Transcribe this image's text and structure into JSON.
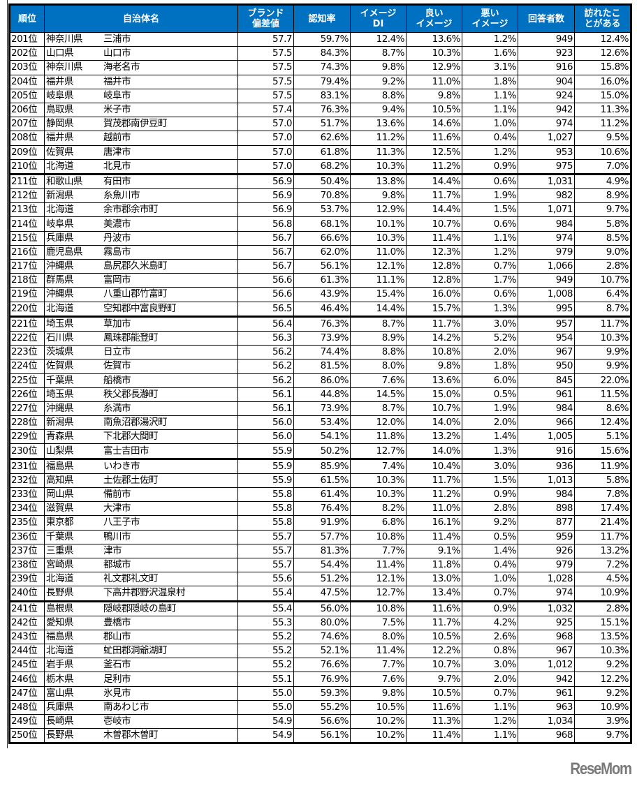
{
  "headers": {
    "rank": "順位",
    "name": "自治体名",
    "brand": [
      "ブランド",
      "偏差値"
    ],
    "awareness": "認知率",
    "image_di": [
      "イメージ",
      "DI"
    ],
    "good": [
      "良い",
      "イメージ"
    ],
    "bad": [
      "悪い",
      "イメージ"
    ],
    "respondents": "回答者数",
    "visited": [
      "訪れたこ",
      "とがある"
    ]
  },
  "rows": [
    [
      "201位",
      "神奈川県",
      "三浦市",
      "57.7",
      "59.7%",
      "12.4%",
      "13.6%",
      "1.2%",
      "949",
      "12.4%"
    ],
    [
      "202位",
      "山口県",
      "山口市",
      "57.5",
      "84.3%",
      "8.7%",
      "10.3%",
      "1.6%",
      "923",
      "12.6%"
    ],
    [
      "203位",
      "神奈川県",
      "海老名市",
      "57.5",
      "74.3%",
      "9.8%",
      "12.9%",
      "3.1%",
      "916",
      "15.8%"
    ],
    [
      "204位",
      "福井県",
      "福井市",
      "57.5",
      "79.4%",
      "9.2%",
      "11.0%",
      "1.8%",
      "904",
      "16.0%"
    ],
    [
      "205位",
      "岐阜県",
      "岐阜市",
      "57.5",
      "83.1%",
      "8.8%",
      "9.8%",
      "1.1%",
      "924",
      "15.0%"
    ],
    [
      "206位",
      "鳥取県",
      "米子市",
      "57.4",
      "76.3%",
      "9.4%",
      "10.5%",
      "1.1%",
      "942",
      "11.3%"
    ],
    [
      "207位",
      "静岡県",
      "賀茂郡南伊豆町",
      "57.0",
      "51.7%",
      "13.6%",
      "14.6%",
      "1.0%",
      "974",
      "11.2%"
    ],
    [
      "208位",
      "福井県",
      "越前市",
      "57.0",
      "62.6%",
      "11.2%",
      "11.6%",
      "0.4%",
      "1,027",
      "9.5%"
    ],
    [
      "209位",
      "佐賀県",
      "唐津市",
      "57.0",
      "61.8%",
      "11.3%",
      "12.5%",
      "1.2%",
      "953",
      "10.6%"
    ],
    [
      "210位",
      "北海道",
      "北見市",
      "57.0",
      "68.2%",
      "10.3%",
      "11.2%",
      "0.9%",
      "975",
      "7.0%"
    ],
    [
      "211位",
      "和歌山県",
      "有田市",
      "56.9",
      "50.4%",
      "13.8%",
      "14.4%",
      "0.6%",
      "1,031",
      "4.9%"
    ],
    [
      "212位",
      "新潟県",
      "糸魚川市",
      "56.9",
      "70.8%",
      "9.8%",
      "11.7%",
      "1.9%",
      "982",
      "8.9%"
    ],
    [
      "213位",
      "北海道",
      "余市郡余市町",
      "56.9",
      "53.7%",
      "12.9%",
      "14.4%",
      "1.5%",
      "1,071",
      "9.7%"
    ],
    [
      "214位",
      "岐阜県",
      "美濃市",
      "56.8",
      "68.1%",
      "10.1%",
      "10.7%",
      "0.6%",
      "984",
      "5.8%"
    ],
    [
      "215位",
      "兵庫県",
      "丹波市",
      "56.7",
      "66.6%",
      "10.3%",
      "11.4%",
      "1.1%",
      "974",
      "8.5%"
    ],
    [
      "216位",
      "鹿児島県",
      "霧島市",
      "56.7",
      "62.0%",
      "11.0%",
      "12.3%",
      "1.2%",
      "979",
      "9.0%"
    ],
    [
      "217位",
      "沖縄県",
      "島尻郡久米島町",
      "56.7",
      "56.1%",
      "12.1%",
      "12.8%",
      "0.7%",
      "1,066",
      "2.8%"
    ],
    [
      "218位",
      "群馬県",
      "富岡市",
      "56.6",
      "61.3%",
      "11.1%",
      "12.8%",
      "1.7%",
      "949",
      "10.7%"
    ],
    [
      "219位",
      "沖縄県",
      "八重山郡竹富町",
      "56.6",
      "43.9%",
      "15.4%",
      "16.0%",
      "0.6%",
      "1,008",
      "6.4%"
    ],
    [
      "220位",
      "北海道",
      "空知郡中富良野町",
      "56.5",
      "46.4%",
      "14.4%",
      "15.7%",
      "1.3%",
      "995",
      "8.7%"
    ],
    [
      "221位",
      "埼玉県",
      "草加市",
      "56.4",
      "76.3%",
      "8.7%",
      "11.7%",
      "3.0%",
      "957",
      "11.7%"
    ],
    [
      "222位",
      "石川県",
      "鳳珠郡能登町",
      "56.3",
      "73.9%",
      "8.9%",
      "14.2%",
      "5.2%",
      "954",
      "10.3%"
    ],
    [
      "223位",
      "茨城県",
      "日立市",
      "56.2",
      "74.4%",
      "8.8%",
      "10.8%",
      "2.0%",
      "967",
      "9.9%"
    ],
    [
      "224位",
      "佐賀県",
      "佐賀市",
      "56.2",
      "81.5%",
      "8.0%",
      "9.8%",
      "1.8%",
      "950",
      "9.9%"
    ],
    [
      "225位",
      "千葉県",
      "船橋市",
      "56.2",
      "86.0%",
      "7.6%",
      "13.6%",
      "6.0%",
      "845",
      "22.0%"
    ],
    [
      "226位",
      "埼玉県",
      "秩父郡長瀞町",
      "56.1",
      "44.8%",
      "14.5%",
      "15.0%",
      "0.5%",
      "961",
      "11.5%"
    ],
    [
      "227位",
      "沖縄県",
      "糸満市",
      "56.1",
      "73.9%",
      "8.7%",
      "10.7%",
      "1.9%",
      "984",
      "8.6%"
    ],
    [
      "228位",
      "新潟県",
      "南魚沼郡湯沢町",
      "56.0",
      "53.4%",
      "12.0%",
      "14.0%",
      "2.0%",
      "966",
      "12.4%"
    ],
    [
      "229位",
      "青森県",
      "下北郡大間町",
      "56.0",
      "54.1%",
      "11.8%",
      "13.2%",
      "1.4%",
      "1,005",
      "5.1%"
    ],
    [
      "230位",
      "山梨県",
      "富士吉田市",
      "55.9",
      "50.2%",
      "12.7%",
      "14.0%",
      "1.3%",
      "916",
      "15.6%"
    ],
    [
      "231位",
      "福島県",
      "いわき市",
      "55.9",
      "85.9%",
      "7.4%",
      "10.4%",
      "3.0%",
      "936",
      "11.9%"
    ],
    [
      "232位",
      "高知県",
      "土佐郡土佐町",
      "55.9",
      "61.5%",
      "10.3%",
      "11.7%",
      "1.5%",
      "1,013",
      "5.8%"
    ],
    [
      "233位",
      "岡山県",
      "備前市",
      "55.8",
      "61.4%",
      "10.3%",
      "11.2%",
      "0.9%",
      "984",
      "7.8%"
    ],
    [
      "234位",
      "滋賀県",
      "大津市",
      "55.8",
      "76.4%",
      "8.2%",
      "11.0%",
      "2.8%",
      "898",
      "17.4%"
    ],
    [
      "235位",
      "東京都",
      "八王子市",
      "55.8",
      "91.9%",
      "6.8%",
      "16.1%",
      "9.2%",
      "877",
      "21.4%"
    ],
    [
      "236位",
      "千葉県",
      "鴨川市",
      "55.7",
      "57.7%",
      "10.8%",
      "11.4%",
      "0.5%",
      "959",
      "11.7%"
    ],
    [
      "237位",
      "三重県",
      "津市",
      "55.7",
      "81.3%",
      "7.7%",
      "9.1%",
      "1.4%",
      "926",
      "13.2%"
    ],
    [
      "238位",
      "宮崎県",
      "都城市",
      "55.7",
      "54.4%",
      "11.4%",
      "11.8%",
      "0.4%",
      "979",
      "7.2%"
    ],
    [
      "239位",
      "北海道",
      "礼文郡礼文町",
      "55.6",
      "51.2%",
      "12.1%",
      "13.0%",
      "1.0%",
      "1,028",
      "4.5%"
    ],
    [
      "240位",
      "長野県",
      "下高井郡野沢温泉村",
      "55.4",
      "47.5%",
      "12.7%",
      "13.4%",
      "0.7%",
      "974",
      "10.9%"
    ],
    [
      "241位",
      "島根県",
      "隠岐郡隠岐の島町",
      "55.4",
      "56.0%",
      "10.8%",
      "11.6%",
      "0.9%",
      "1,032",
      "2.8%"
    ],
    [
      "242位",
      "愛知県",
      "豊橋市",
      "55.3",
      "80.0%",
      "7.5%",
      "11.7%",
      "4.2%",
      "925",
      "15.1%"
    ],
    [
      "243位",
      "福島県",
      "郡山市",
      "55.2",
      "74.6%",
      "8.0%",
      "10.5%",
      "2.6%",
      "968",
      "13.5%"
    ],
    [
      "244位",
      "北海道",
      "虻田郡洞爺湖町",
      "55.2",
      "52.1%",
      "11.4%",
      "12.2%",
      "0.8%",
      "967",
      "10.3%"
    ],
    [
      "245位",
      "岩手県",
      "釜石市",
      "55.2",
      "76.6%",
      "7.7%",
      "10.7%",
      "3.0%",
      "1,012",
      "9.2%"
    ],
    [
      "246位",
      "栃木県",
      "足利市",
      "55.1",
      "76.9%",
      "7.6%",
      "9.7%",
      "2.0%",
      "942",
      "12.2%"
    ],
    [
      "247位",
      "富山県",
      "氷見市",
      "55.0",
      "59.3%",
      "9.8%",
      "10.5%",
      "0.7%",
      "961",
      "9.2%"
    ],
    [
      "248位",
      "兵庫県",
      "南あわじ市",
      "55.0",
      "55.2%",
      "10.5%",
      "11.6%",
      "1.1%",
      "963",
      "10.9%"
    ],
    [
      "249位",
      "長崎県",
      "壱岐市",
      "54.9",
      "56.6%",
      "10.2%",
      "11.3%",
      "1.2%",
      "1,034",
      "3.9%"
    ],
    [
      "250位",
      "長野県",
      "木曽郡木曽町",
      "54.9",
      "56.1%",
      "10.2%",
      "11.4%",
      "1.1%",
      "968",
      "9.7%"
    ]
  ],
  "colors": {
    "header_bg": "#0070C0",
    "header_text": "#FFFFFF"
  },
  "logo": "ReseMom"
}
